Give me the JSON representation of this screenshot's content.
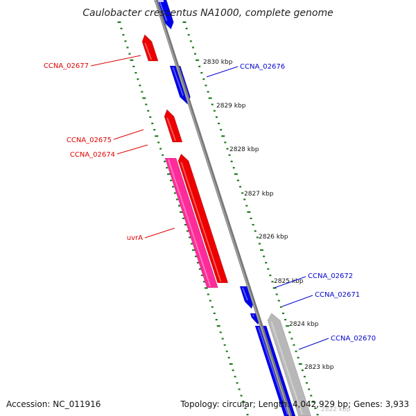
{
  "title": "Caulobacter crescentus NA1000, complete genome",
  "footer": {
    "accession": "Accession: NC_011916",
    "topology": "Topology: circular; Length: 4,042,929 bp; Genes: 3,933"
  },
  "colors": {
    "backbone": "#777777",
    "ticks": "#1a7a1a",
    "forward_gene": "#0000ee",
    "reverse_gene": "#ee0000",
    "uvrA": "#ff2b9a",
    "grey_feature": "#b8b8b8",
    "forward_label": "#0000cc",
    "reverse_label": "#dd0000"
  },
  "ticks": [
    {
      "label": "2830 kbp"
    },
    {
      "label": "2829 kbp"
    },
    {
      "label": "2828 kbp"
    },
    {
      "label": "2827 kbp"
    },
    {
      "label": "2826 kbp"
    },
    {
      "label": "2825 kbp"
    },
    {
      "label": "2824 kbp"
    },
    {
      "label": "2823 kbp"
    },
    {
      "label": "2822 kbp"
    }
  ],
  "genes": [
    {
      "id": "g-top",
      "label": "",
      "strand": "forward"
    },
    {
      "id": "CCNA_02677",
      "label": "CCNA_02677",
      "strand": "reverse"
    },
    {
      "id": "CCNA_02676",
      "label": "CCNA_02676",
      "strand": "forward"
    },
    {
      "id": "CCNA_02675",
      "label": "CCNA_02675",
      "strand": "reverse"
    },
    {
      "id": "CCNA_02674",
      "label": "CCNA_02674",
      "strand": "reverse"
    },
    {
      "id": "uvrA",
      "label": "uvrA",
      "strand": "reverse"
    },
    {
      "id": "CCNA_02672",
      "label": "CCNA_02672",
      "strand": "forward"
    },
    {
      "id": "CCNA_02671",
      "label": "CCNA_02671",
      "strand": "forward"
    },
    {
      "id": "CCNA_02670",
      "label": "CCNA_02670",
      "strand": "forward"
    }
  ]
}
